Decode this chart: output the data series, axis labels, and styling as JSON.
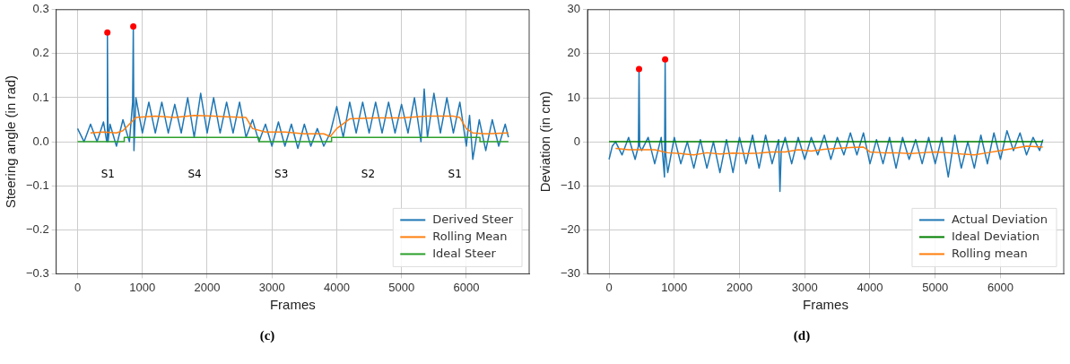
{
  "chart_data": [
    {
      "type": "line",
      "xlabel": "Frames",
      "ylabel": "Steering angle (in rad)",
      "xlim": [
        -330,
        6970
      ],
      "ylim": [
        -0.3,
        0.3
      ],
      "xticks": [
        0,
        1000,
        2000,
        3000,
        4000,
        5000,
        6000
      ],
      "yticks": [
        {
          "value": -0.3,
          "label": "−0.3"
        },
        {
          "value": -0.2,
          "label": "−0.2"
        },
        {
          "value": -0.1,
          "label": "−0.1"
        },
        {
          "value": 0,
          "label": "0.0"
        },
        {
          "value": 0.1,
          "label": "0.1"
        },
        {
          "value": 0.2,
          "label": "0.2"
        },
        {
          "value": 0.3,
          "label": "0.3"
        }
      ],
      "grid": true,
      "legend": "bottom right",
      "marker": "none",
      "line_style": "solid",
      "series": [
        {
          "name": "Derived Steer",
          "color": "#1f77b4",
          "x": [
            0,
            100,
            200,
            300,
            400,
            450,
            460,
            470,
            500,
            600,
            700,
            800,
            850,
            860,
            870,
            900,
            1000,
            1100,
            1200,
            1300,
            1400,
            1500,
            1600,
            1700,
            1800,
            1900,
            2000,
            2100,
            2200,
            2300,
            2400,
            2500,
            2600,
            2700,
            2800,
            2900,
            3000,
            3100,
            3200,
            3300,
            3400,
            3500,
            3600,
            3700,
            3800,
            3900,
            4000,
            4100,
            4200,
            4300,
            4400,
            4500,
            4600,
            4700,
            4800,
            4900,
            5000,
            5100,
            5200,
            5300,
            5350,
            5400,
            5500,
            5600,
            5700,
            5800,
            5900,
            6000,
            6050,
            6100,
            6200,
            6300,
            6400,
            6500,
            6600,
            6650
          ],
          "values": [
            0.03,
            0.0,
            0.04,
            0.0,
            0.045,
            0.0,
            0.248,
            0.0,
            0.04,
            -0.01,
            0.05,
            0.0,
            0.09,
            0.262,
            -0.02,
            0.1,
            0.02,
            0.09,
            0.02,
            0.09,
            0.02,
            0.085,
            0.02,
            0.1,
            0.01,
            0.11,
            0.02,
            0.1,
            0.02,
            0.09,
            0.02,
            0.09,
            0.01,
            0.05,
            0.0,
            0.04,
            -0.01,
            0.045,
            -0.01,
            0.04,
            -0.015,
            0.04,
            -0.01,
            0.03,
            -0.01,
            0.02,
            0.08,
            0.01,
            0.09,
            0.02,
            0.09,
            0.02,
            0.09,
            0.02,
            0.09,
            0.02,
            0.085,
            0.02,
            0.1,
            0.0,
            0.12,
            0.01,
            0.11,
            0.02,
            0.1,
            0.02,
            0.09,
            -0.01,
            0.06,
            -0.04,
            0.05,
            -0.02,
            0.05,
            -0.01,
            0.04,
            0.01
          ]
        },
        {
          "name": "Rolling Mean",
          "color": "#ff7f0e",
          "x": [
            200,
            400,
            600,
            700,
            800,
            900,
            1200,
            1500,
            1800,
            2100,
            2400,
            2600,
            2700,
            2900,
            3200,
            3500,
            3800,
            3900,
            4000,
            4200,
            4600,
            5000,
            5400,
            5800,
            5900,
            6000,
            6100,
            6300,
            6650
          ],
          "values": [
            0.02,
            0.022,
            0.02,
            0.025,
            0.04,
            0.055,
            0.058,
            0.055,
            0.06,
            0.058,
            0.056,
            0.055,
            0.03,
            0.022,
            0.022,
            0.018,
            0.018,
            0.012,
            0.03,
            0.052,
            0.054,
            0.054,
            0.058,
            0.058,
            0.055,
            0.03,
            0.02,
            0.018,
            0.02
          ]
        },
        {
          "name": "Ideal Steer",
          "color": "#2ca02c",
          "x": [
            0,
            720,
            720,
            2800,
            2800,
            3920,
            3920,
            6210,
            6210,
            6650
          ],
          "values": [
            0,
            0,
            0.01,
            0.01,
            0,
            0,
            0.01,
            0.01,
            0,
            0
          ]
        },
        {
          "type": "scatter",
          "marker": "circle",
          "color": "#ff0000",
          "x": [
            460,
            860
          ],
          "values": [
            0.248,
            0.262
          ]
        }
      ],
      "annotations": [
        "S1",
        "S4",
        "S3",
        "S2",
        "S1",
        "(c)"
      ]
    },
    {
      "type": "line",
      "xlabel": "Frames",
      "ylabel": "Deviation (in cm)",
      "xlim": [
        -330,
        6970
      ],
      "ylim": [
        -30,
        30
      ],
      "xticks": [
        0,
        1000,
        2000,
        3000,
        4000,
        5000,
        6000
      ],
      "yticks": [
        {
          "value": -30,
          "label": "−30"
        },
        {
          "value": -20,
          "label": "−20"
        },
        {
          "value": -10,
          "label": "−10"
        },
        0,
        10,
        20,
        30
      ],
      "grid": true,
      "legend": "bottom right",
      "marker": "none",
      "line_style": "solid",
      "series": [
        {
          "name": "Actual Deviation",
          "color": "#1f77b4",
          "x": [
            0,
            50,
            100,
            200,
            300,
            400,
            450,
            460,
            470,
            500,
            600,
            700,
            800,
            850,
            860,
            870,
            900,
            1000,
            1100,
            1200,
            1300,
            1400,
            1500,
            1600,
            1700,
            1800,
            1900,
            2000,
            2100,
            2200,
            2300,
            2400,
            2500,
            2600,
            2620,
            2640,
            2700,
            2800,
            2900,
            3000,
            3100,
            3200,
            3300,
            3400,
            3500,
            3600,
            3700,
            3800,
            3900,
            4000,
            4100,
            4200,
            4300,
            4400,
            4500,
            4600,
            4700,
            4800,
            4900,
            5000,
            5100,
            5200,
            5300,
            5400,
            5500,
            5600,
            5700,
            5800,
            5900,
            6000,
            6100,
            6200,
            6300,
            6400,
            6500,
            6600,
            6650
          ],
          "values": [
            -4,
            -1,
            0,
            -3,
            1,
            -4,
            -1,
            16.5,
            -1,
            -2,
            1,
            -5,
            1,
            -8,
            18.7,
            -3,
            -7,
            1,
            -5,
            0,
            -6,
            0.5,
            -6,
            0,
            -7,
            0.5,
            -7,
            1,
            -5,
            1.5,
            -6,
            1.5,
            -5,
            0.5,
            -11.3,
            -2,
            1,
            -5,
            1,
            -4,
            1,
            -3,
            1.5,
            -4,
            1,
            -3,
            2,
            -3,
            2,
            -5,
            0.5,
            -5,
            1,
            -6,
            1,
            -4,
            0.5,
            -5,
            1,
            -5,
            1,
            -8,
            1.5,
            -6,
            0,
            -6,
            1.5,
            -5,
            2,
            -4,
            2.5,
            -2,
            2,
            -3,
            1,
            -2,
            0.5
          ]
        },
        {
          "name": "Ideal Deviation",
          "color": "#008000",
          "x": [
            0,
            6650
          ],
          "values": [
            0,
            0
          ]
        },
        {
          "name": "Rolling mean",
          "color": "#ff7f0e",
          "x": [
            100,
            300,
            500,
            700,
            900,
            1100,
            1300,
            1500,
            1700,
            1900,
            2100,
            2300,
            2500,
            2700,
            2900,
            3100,
            3300,
            3500,
            3700,
            3900,
            4000,
            4200,
            4400,
            4600,
            4800,
            5000,
            5200,
            5400,
            5600,
            5800,
            6000,
            6200,
            6400,
            6650
          ],
          "values": [
            -1.5,
            -1.8,
            -1.8,
            -1.8,
            -2.5,
            -2.7,
            -3,
            -2.5,
            -2.8,
            -2.6,
            -2.7,
            -2.6,
            -2.3,
            -2.3,
            -1.8,
            -2.1,
            -1.7,
            -1.5,
            -1.3,
            -1.2,
            -2.3,
            -2.5,
            -2.5,
            -2.7,
            -2.5,
            -2.3,
            -2.5,
            -2.8,
            -3,
            -2.5,
            -2,
            -1.5,
            -1,
            -1.2
          ]
        },
        {
          "type": "scatter",
          "marker": "circle",
          "color": "#ff0000",
          "x": [
            460,
            860
          ],
          "values": [
            16.5,
            18.7
          ]
        }
      ],
      "annotations": [
        "(d)"
      ]
    }
  ]
}
